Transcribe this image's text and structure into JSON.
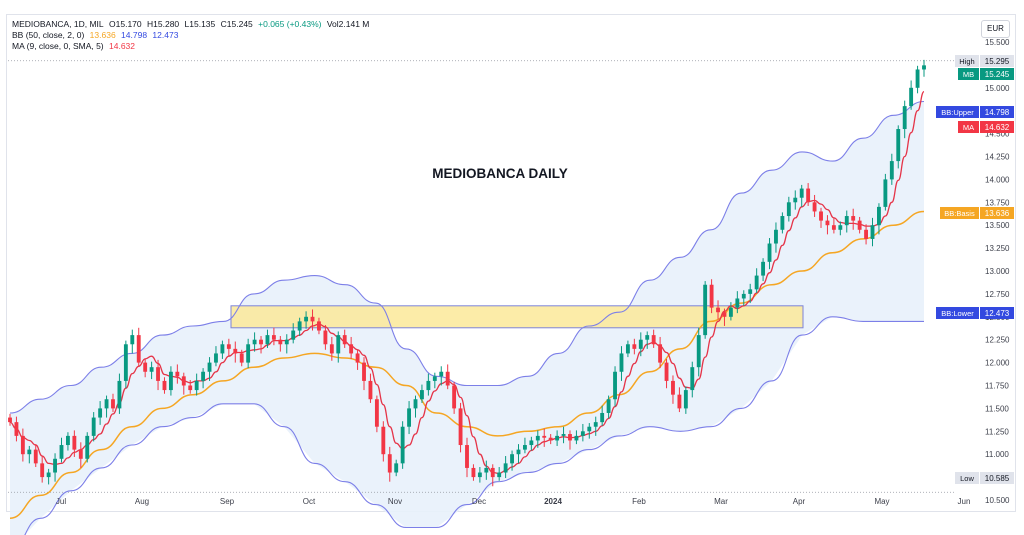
{
  "legend": {
    "symbol": "MEDIOBANCA, 1D, MIL",
    "open": "O15.170",
    "high": "H15.280",
    "low": "L15.135",
    "close": "C15.245",
    "change": "+0.065 (+0.43%)",
    "volume": "Vol2.141 M",
    "bb_label": "BB (50, close, 2, 0)",
    "bb_basis": "13.636",
    "bb_upper": "14.798",
    "bb_lower": "12.473",
    "ma_label": "MA (9, close, 0, SMA, 5)",
    "ma_value": "14.632"
  },
  "currency": "EUR",
  "colors": {
    "up": "#089981",
    "down": "#f23645",
    "bb_band": "#7c7fe8",
    "bb_basis": "#f5a623",
    "ma": "#e53448",
    "fill": "#e8f1fb",
    "zone": "#fbe999",
    "zone_border": "#7d83d8",
    "label_green": "#089981",
    "label_blue": "#3349e0",
    "label_red": "#f23645",
    "label_orange": "#f5a623",
    "label_grey": "#e0e3eb"
  },
  "chart_data": {
    "type": "candlestick",
    "title": "MEDIOBANCA DAILY",
    "ylim": [
      10.5,
      15.5
    ],
    "y_ticks": [
      "10.500",
      "10.750",
      "11.000",
      "11.250",
      "11.500",
      "11.750",
      "12.000",
      "12.250",
      "12.500",
      "12.750",
      "13.000",
      "13.250",
      "13.500",
      "13.750",
      "14.000",
      "14.250",
      "14.500",
      "15.000",
      "15.500"
    ],
    "x_labels": [
      "Jul",
      "Aug",
      "Sep",
      "Oct",
      "Nov",
      "Dec",
      "2024",
      "Feb",
      "Mar",
      "Apr",
      "May",
      "Jun"
    ],
    "price_labels": {
      "high_label": "High",
      "high_value": "15.295",
      "mb_label": "MB",
      "mb_value": "15.245",
      "upper_label": "BB:Upper",
      "upper_value": "14.798",
      "ma_label": "MA",
      "ma_value": "14.632",
      "basis_label": "BB:Basis",
      "basis_value": "13.636",
      "lower_label": "BB:Lower",
      "lower_value": "12.473",
      "low_label": "Low",
      "low_value": "10.585"
    },
    "zone": {
      "from": "Sep",
      "to": "Apr",
      "y_low": 12.38,
      "y_high": 12.62
    },
    "closes": [
      11.35,
      11.2,
      11.0,
      11.05,
      10.9,
      10.75,
      10.8,
      10.95,
      11.1,
      11.2,
      11.05,
      10.95,
      11.2,
      11.4,
      11.5,
      11.6,
      11.5,
      11.8,
      12.2,
      12.3,
      12.0,
      11.9,
      11.95,
      11.8,
      11.7,
      11.9,
      11.85,
      11.75,
      11.7,
      11.8,
      11.9,
      12.0,
      12.1,
      12.2,
      12.15,
      12.1,
      12.0,
      12.2,
      12.25,
      12.2,
      12.3,
      12.25,
      12.2,
      12.25,
      12.35,
      12.45,
      12.5,
      12.45,
      12.35,
      12.2,
      12.1,
      12.3,
      12.2,
      12.1,
      12.0,
      11.8,
      11.6,
      11.3,
      11.0,
      10.8,
      10.9,
      11.3,
      11.5,
      11.6,
      11.7,
      11.8,
      11.85,
      11.9,
      11.75,
      11.5,
      11.1,
      10.85,
      10.75,
      10.8,
      10.85,
      10.75,
      10.8,
      10.9,
      11.0,
      11.05,
      11.1,
      11.15,
      11.2,
      11.18,
      11.15,
      11.2,
      11.22,
      11.15,
      11.2,
      11.25,
      11.3,
      11.35,
      11.45,
      11.6,
      11.9,
      12.1,
      12.2,
      12.15,
      12.25,
      12.3,
      12.2,
      12.0,
      11.8,
      11.65,
      11.5,
      11.7,
      11.95,
      12.3,
      12.85,
      12.6,
      12.55,
      12.5,
      12.6,
      12.7,
      12.75,
      12.8,
      12.95,
      13.1,
      13.3,
      13.45,
      13.6,
      13.75,
      13.8,
      13.9,
      13.75,
      13.65,
      13.55,
      13.5,
      13.45,
      13.5,
      13.6,
      13.55,
      13.45,
      13.35,
      13.5,
      13.7,
      14.0,
      14.2,
      14.55,
      14.8,
      15.0,
      15.2,
      15.245
    ],
    "bb_upper": [
      11.45,
      11.6,
      11.75,
      11.95,
      12.1,
      12.3,
      12.4,
      12.45,
      12.75,
      12.9,
      12.95,
      12.85,
      12.65,
      12.15,
      11.85,
      11.75,
      11.75,
      11.85,
      12.1,
      12.4,
      12.55,
      12.9,
      13.15,
      13.45,
      13.85,
      14.1,
      14.3,
      14.2,
      14.45,
      14.7,
      14.85
    ],
    "bb_basis": [
      10.3,
      10.55,
      10.8,
      11.05,
      11.3,
      11.5,
      11.65,
      11.8,
      11.95,
      12.05,
      12.1,
      12.05,
      11.95,
      11.75,
      11.45,
      11.3,
      11.2,
      11.25,
      11.3,
      11.45,
      11.65,
      11.9,
      12.15,
      12.45,
      12.65,
      12.85,
      13.0,
      13.2,
      13.35,
      13.5,
      13.65
    ],
    "bb_lower": [
      9.95,
      10.3,
      10.6,
      10.85,
      11.1,
      11.3,
      11.4,
      11.55,
      11.55,
      11.3,
      10.9,
      10.7,
      10.45,
      10.2,
      10.2,
      10.45,
      10.7,
      10.8,
      10.9,
      11.05,
      11.2,
      11.3,
      11.25,
      11.3,
      11.5,
      11.8,
      12.3,
      12.5,
      12.45,
      12.45,
      12.45
    ]
  }
}
